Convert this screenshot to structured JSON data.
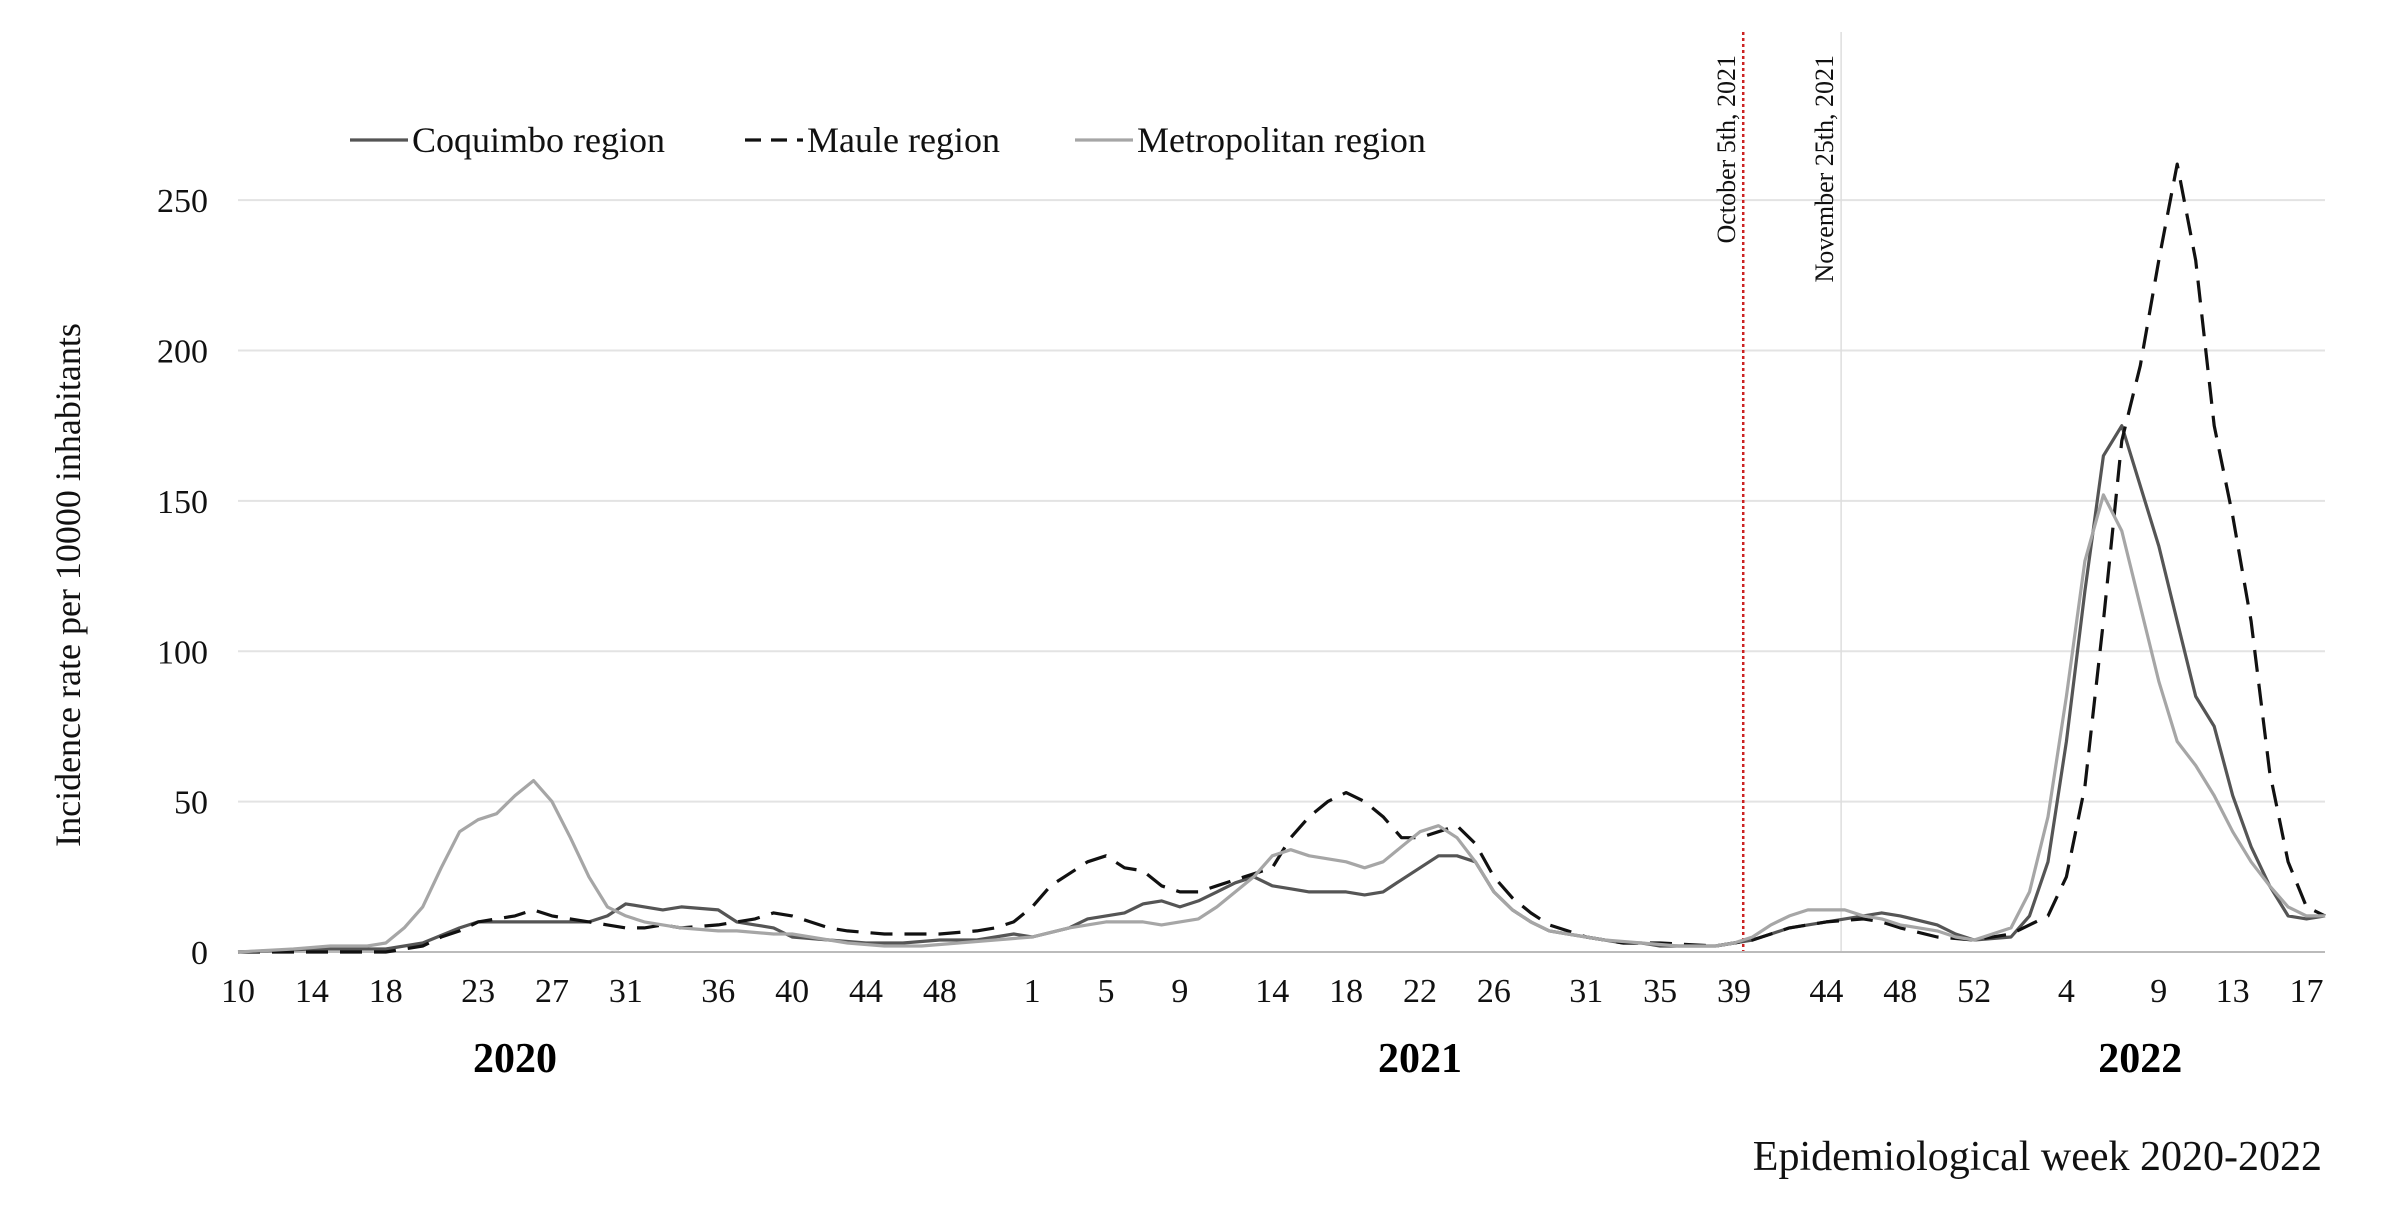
{
  "chart_data": {
    "type": "line",
    "title": "",
    "xlabel": "Epidemiological week 2020-2022",
    "ylabel": "Incidence rate per 10000 inhabitants",
    "ylim": [
      0,
      270
    ],
    "yticks": [
      0,
      50,
      100,
      150,
      200,
      250
    ],
    "grid": "horizontal",
    "legend_position": "top-left",
    "x_index_range": [
      0,
      113
    ],
    "x_tick_labels": [
      "10",
      "14",
      "18",
      "23",
      "27",
      "31",
      "36",
      "40",
      "44",
      "48",
      "1",
      "5",
      "9",
      "14",
      "18",
      "22",
      "26",
      "31",
      "35",
      "39",
      "44",
      "48",
      "52",
      "4",
      "9",
      "13",
      "17"
    ],
    "x_tick_index": [
      0,
      4,
      8,
      13,
      17,
      21,
      26,
      30,
      34,
      38,
      43,
      47,
      51,
      56,
      60,
      64,
      68,
      73,
      77,
      81,
      86,
      90,
      94,
      99,
      104,
      108,
      112
    ],
    "year_labels": [
      {
        "label": "2020",
        "center_index": 15
      },
      {
        "label": "2021",
        "center_index": 64
      },
      {
        "label": "2022",
        "center_index": 103
      }
    ],
    "vertical_markers": [
      {
        "label": "October 5th, 2021",
        "index": 81.5,
        "color": "#cc2222",
        "style": "dotted"
      },
      {
        "label": "November 25th, 2021",
        "index": 86.8,
        "color": "#dddddd",
        "style": "solid"
      }
    ],
    "series": [
      {
        "name": "Coquimbo region",
        "color": "#555555",
        "dash": "solid",
        "points": [
          [
            0,
            0
          ],
          [
            4,
            1
          ],
          [
            8,
            1
          ],
          [
            10,
            3
          ],
          [
            12,
            8
          ],
          [
            13,
            10
          ],
          [
            14,
            10
          ],
          [
            15,
            10
          ],
          [
            17,
            10
          ],
          [
            19,
            10
          ],
          [
            20,
            12
          ],
          [
            21,
            16
          ],
          [
            23,
            14
          ],
          [
            24,
            15
          ],
          [
            26,
            14
          ],
          [
            27,
            10
          ],
          [
            28,
            9
          ],
          [
            29,
            8
          ],
          [
            30,
            5
          ],
          [
            32,
            4
          ],
          [
            34,
            3
          ],
          [
            36,
            3
          ],
          [
            38,
            4
          ],
          [
            40,
            4
          ],
          [
            42,
            6
          ],
          [
            43,
            5
          ],
          [
            45,
            8
          ],
          [
            46,
            11
          ],
          [
            48,
            13
          ],
          [
            49,
            16
          ],
          [
            50,
            17
          ],
          [
            51,
            15
          ],
          [
            52,
            17
          ],
          [
            53,
            20
          ],
          [
            54,
            23
          ],
          [
            55,
            25
          ],
          [
            56,
            22
          ],
          [
            57,
            21
          ],
          [
            58,
            20
          ],
          [
            60,
            20
          ],
          [
            61,
            19
          ],
          [
            62,
            20
          ],
          [
            63,
            24
          ],
          [
            64,
            28
          ],
          [
            65,
            32
          ],
          [
            66,
            32
          ],
          [
            67,
            30
          ],
          [
            68,
            20
          ],
          [
            69,
            14
          ],
          [
            70,
            10
          ],
          [
            71,
            7
          ],
          [
            72,
            6
          ],
          [
            73,
            5
          ],
          [
            74,
            4
          ],
          [
            75,
            3
          ],
          [
            76,
            3
          ],
          [
            77,
            2
          ],
          [
            79,
            2
          ],
          [
            80,
            2
          ],
          [
            81,
            3
          ],
          [
            82,
            4
          ],
          [
            83,
            6
          ],
          [
            84,
            8
          ],
          [
            86,
            10
          ],
          [
            88,
            12
          ],
          [
            89,
            13
          ],
          [
            90,
            12
          ],
          [
            92,
            9
          ],
          [
            93,
            6
          ],
          [
            94,
            4
          ],
          [
            96,
            5
          ],
          [
            97,
            12
          ],
          [
            98,
            30
          ],
          [
            99,
            70
          ],
          [
            100,
            120
          ],
          [
            101,
            165
          ],
          [
            102,
            175
          ],
          [
            103,
            155
          ],
          [
            104,
            135
          ],
          [
            105,
            110
          ],
          [
            106,
            85
          ],
          [
            107,
            75
          ],
          [
            108,
            52
          ],
          [
            109,
            35
          ],
          [
            110,
            22
          ],
          [
            111,
            12
          ],
          [
            112,
            11
          ],
          [
            113,
            12
          ]
        ]
      },
      {
        "name": "Maule region",
        "color": "#111111",
        "dash": "long-dash",
        "points": [
          [
            0,
            0
          ],
          [
            4,
            0
          ],
          [
            8,
            0
          ],
          [
            10,
            2
          ],
          [
            11,
            5
          ],
          [
            12,
            7
          ],
          [
            13,
            10
          ],
          [
            14,
            11
          ],
          [
            15,
            12
          ],
          [
            16,
            14
          ],
          [
            17,
            12
          ],
          [
            18,
            11
          ],
          [
            19,
            10
          ],
          [
            20,
            9
          ],
          [
            21,
            8
          ],
          [
            22,
            8
          ],
          [
            23,
            9
          ],
          [
            24,
            8
          ],
          [
            26,
            9
          ],
          [
            27,
            10
          ],
          [
            28,
            11
          ],
          [
            29,
            13
          ],
          [
            30,
            12
          ],
          [
            31,
            10
          ],
          [
            32,
            8
          ],
          [
            33,
            7
          ],
          [
            35,
            6
          ],
          [
            36,
            6
          ],
          [
            38,
            6
          ],
          [
            40,
            7
          ],
          [
            41,
            8
          ],
          [
            42,
            10
          ],
          [
            43,
            15
          ],
          [
            44,
            22
          ],
          [
            45,
            26
          ],
          [
            46,
            30
          ],
          [
            47,
            32
          ],
          [
            48,
            28
          ],
          [
            49,
            27
          ],
          [
            50,
            22
          ],
          [
            51,
            20
          ],
          [
            52,
            20
          ],
          [
            53,
            22
          ],
          [
            54,
            24
          ],
          [
            55,
            26
          ],
          [
            56,
            28
          ],
          [
            57,
            38
          ],
          [
            58,
            45
          ],
          [
            59,
            50
          ],
          [
            60,
            53
          ],
          [
            61,
            50
          ],
          [
            62,
            45
          ],
          [
            63,
            38
          ],
          [
            64,
            38
          ],
          [
            65,
            40
          ],
          [
            66,
            42
          ],
          [
            67,
            36
          ],
          [
            68,
            25
          ],
          [
            69,
            18
          ],
          [
            70,
            13
          ],
          [
            71,
            9
          ],
          [
            72,
            7
          ],
          [
            73,
            5
          ],
          [
            74,
            4
          ],
          [
            75,
            3
          ],
          [
            77,
            3
          ],
          [
            80,
            2
          ],
          [
            81,
            3
          ],
          [
            82,
            4
          ],
          [
            83,
            6
          ],
          [
            84,
            8
          ],
          [
            86,
            10
          ],
          [
            88,
            11
          ],
          [
            89,
            10
          ],
          [
            90,
            8
          ],
          [
            92,
            5
          ],
          [
            94,
            4
          ],
          [
            96,
            6
          ],
          [
            97,
            9
          ],
          [
            98,
            12
          ],
          [
            99,
            25
          ],
          [
            100,
            55
          ],
          [
            101,
            110
          ],
          [
            102,
            170
          ],
          [
            103,
            195
          ],
          [
            104,
            230
          ],
          [
            105,
            262
          ],
          [
            106,
            230
          ],
          [
            107,
            175
          ],
          [
            108,
            145
          ],
          [
            109,
            110
          ],
          [
            110,
            60
          ],
          [
            111,
            30
          ],
          [
            112,
            15
          ],
          [
            113,
            12
          ]
        ]
      },
      {
        "name": "Metropolitan region",
        "color": "#a6a6a6",
        "dash": "solid",
        "points": [
          [
            0,
            0
          ],
          [
            3,
            1
          ],
          [
            5,
            2
          ],
          [
            7,
            2
          ],
          [
            8,
            3
          ],
          [
            9,
            8
          ],
          [
            10,
            15
          ],
          [
            11,
            28
          ],
          [
            12,
            40
          ],
          [
            13,
            44
          ],
          [
            14,
            46
          ],
          [
            15,
            52
          ],
          [
            16,
            57
          ],
          [
            17,
            50
          ],
          [
            18,
            38
          ],
          [
            19,
            25
          ],
          [
            20,
            15
          ],
          [
            21,
            12
          ],
          [
            22,
            10
          ],
          [
            23,
            9
          ],
          [
            24,
            8
          ],
          [
            26,
            7
          ],
          [
            27,
            7
          ],
          [
            29,
            6
          ],
          [
            30,
            6
          ],
          [
            31,
            5
          ],
          [
            32,
            4
          ],
          [
            33,
            3
          ],
          [
            35,
            2
          ],
          [
            37,
            2
          ],
          [
            39,
            3
          ],
          [
            41,
            4
          ],
          [
            43,
            5
          ],
          [
            45,
            8
          ],
          [
            47,
            10
          ],
          [
            49,
            10
          ],
          [
            50,
            9
          ],
          [
            51,
            10
          ],
          [
            52,
            11
          ],
          [
            53,
            15
          ],
          [
            54,
            20
          ],
          [
            55,
            25
          ],
          [
            56,
            32
          ],
          [
            57,
            34
          ],
          [
            58,
            32
          ],
          [
            59,
            31
          ],
          [
            60,
            30
          ],
          [
            61,
            28
          ],
          [
            62,
            30
          ],
          [
            63,
            35
          ],
          [
            64,
            40
          ],
          [
            65,
            42
          ],
          [
            66,
            38
          ],
          [
            67,
            30
          ],
          [
            68,
            20
          ],
          [
            69,
            14
          ],
          [
            70,
            10
          ],
          [
            71,
            7
          ],
          [
            72,
            6
          ],
          [
            73,
            5
          ],
          [
            74,
            4
          ],
          [
            76,
            3
          ],
          [
            78,
            2
          ],
          [
            80,
            2
          ],
          [
            81,
            3
          ],
          [
            82,
            5
          ],
          [
            83,
            9
          ],
          [
            84,
            12
          ],
          [
            85,
            14
          ],
          [
            86,
            14
          ],
          [
            87,
            14
          ],
          [
            88,
            12
          ],
          [
            89,
            11
          ],
          [
            90,
            9
          ],
          [
            92,
            7
          ],
          [
            93,
            5
          ],
          [
            94,
            4
          ],
          [
            96,
            8
          ],
          [
            97,
            20
          ],
          [
            98,
            45
          ],
          [
            99,
            85
          ],
          [
            100,
            130
          ],
          [
            101,
            152
          ],
          [
            102,
            140
          ],
          [
            103,
            115
          ],
          [
            104,
            90
          ],
          [
            105,
            70
          ],
          [
            106,
            62
          ],
          [
            107,
            52
          ],
          [
            108,
            40
          ],
          [
            109,
            30
          ],
          [
            110,
            22
          ],
          [
            111,
            15
          ],
          [
            112,
            12
          ],
          [
            113,
            12
          ]
        ]
      }
    ]
  }
}
